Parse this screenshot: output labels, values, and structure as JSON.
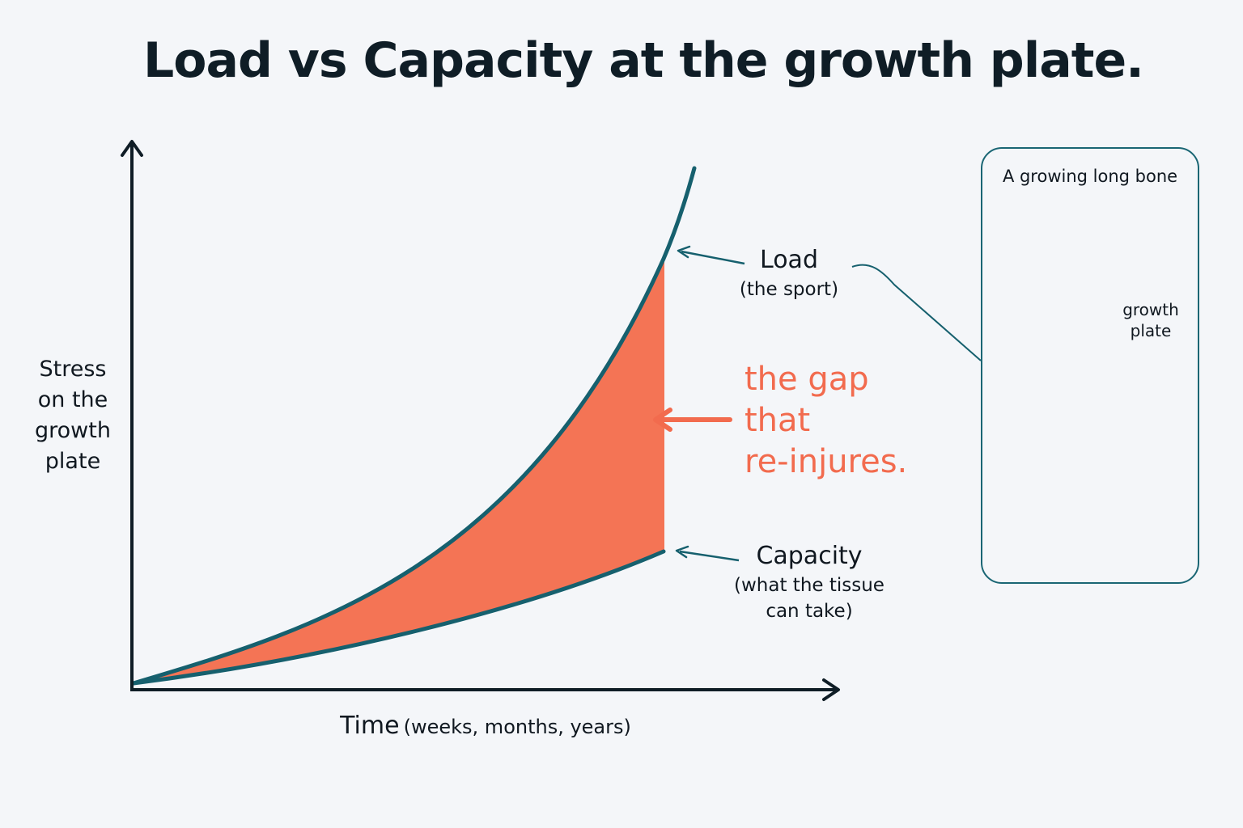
{
  "title": "Load vs Capacity at the growth plate.",
  "y_axis_label": [
    "Stress",
    "on the",
    "growth",
    "plate"
  ],
  "x_axis_label": {
    "main": "Time",
    "sub": "(weeks, months, years)"
  },
  "curves": {
    "load": {
      "label": "Load",
      "sublabel": "(the sport)",
      "color": "#16606e"
    },
    "capacity": {
      "label": "Capacity",
      "sublabel_lines": [
        "(what the tissue",
        "can take)"
      ],
      "color": "#16606e"
    }
  },
  "gap": {
    "lines": [
      "the gap",
      "that",
      "re-injures."
    ],
    "color": "#f26b4e",
    "fill": "#f47455"
  },
  "bone_panel": {
    "title": "A growing long bone",
    "growth_plate_label": [
      "growth",
      "plate"
    ],
    "bone_color": "#eeeadf",
    "cartilage_color": "#d5e8f2",
    "growth_plate_color": "#f58266"
  }
}
